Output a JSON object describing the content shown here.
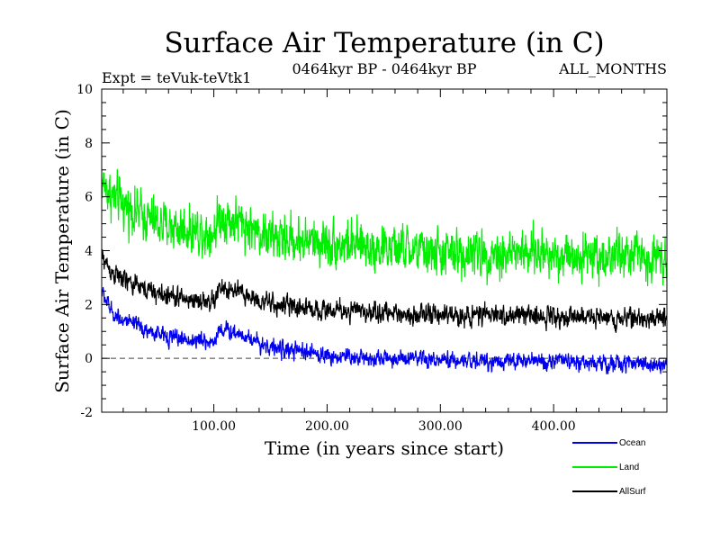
{
  "chart_data": {
    "type": "line",
    "title": "Surface Air Temperature (in C)",
    "subtitle": "0464kyr BP - 0464kyr BP",
    "expt_label": "Expt = teVuk-teVtk1",
    "months_label": "ALL_MONTHS",
    "xlabel": "Time (in years since start)",
    "ylabel": "Surface Air Temperature (in C)",
    "xlim": [
      1,
      500
    ],
    "ylim": [
      -2,
      10
    ],
    "x_ticks": [
      100,
      200,
      300,
      400
    ],
    "x_tick_labels": [
      "100.00",
      "200.00",
      "300.00",
      "400.00"
    ],
    "y_ticks": [
      -2,
      0,
      2,
      4,
      6,
      8,
      10
    ],
    "y_tick_labels": [
      "-2",
      "0",
      "2",
      "4",
      "6",
      "8",
      "10"
    ],
    "zero_line": true,
    "series": [
      {
        "name": "Land",
        "color": "#00ee00",
        "x": [
          1,
          10,
          25,
          50,
          75,
          100,
          105,
          125,
          150,
          200,
          250,
          300,
          350,
          400,
          450,
          500
        ],
        "y": [
          6.6,
          6.0,
          5.6,
          5.0,
          4.8,
          4.7,
          5.3,
          5.0,
          4.5,
          4.3,
          4.1,
          3.9,
          3.9,
          3.9,
          3.8,
          3.8
        ],
        "noise": 0.7
      },
      {
        "name": "AllSurf",
        "color": "#000000",
        "x": [
          1,
          10,
          25,
          50,
          75,
          100,
          105,
          125,
          150,
          200,
          250,
          300,
          350,
          400,
          450,
          500
        ],
        "y": [
          3.8,
          3.2,
          2.8,
          2.4,
          2.2,
          2.1,
          2.6,
          2.4,
          2.0,
          1.8,
          1.7,
          1.6,
          1.6,
          1.6,
          1.5,
          1.5
        ],
        "noise": 0.3
      },
      {
        "name": "Ocean",
        "color": "#0000ee",
        "x": [
          1,
          10,
          25,
          50,
          75,
          100,
          105,
          125,
          150,
          200,
          250,
          300,
          350,
          400,
          450,
          500
        ],
        "y": [
          2.5,
          1.7,
          1.3,
          0.9,
          0.7,
          0.6,
          1.1,
          0.9,
          0.4,
          0.1,
          0.0,
          -0.1,
          -0.1,
          -0.1,
          -0.2,
          -0.2
        ],
        "noise": 0.25
      }
    ],
    "legend": [
      {
        "name": "Ocean",
        "color": "#0000ee"
      },
      {
        "name": "Land",
        "color": "#00ee00"
      },
      {
        "name": "AllSurf",
        "color": "#000000"
      }
    ],
    "legend_placement": "bottom-right"
  }
}
